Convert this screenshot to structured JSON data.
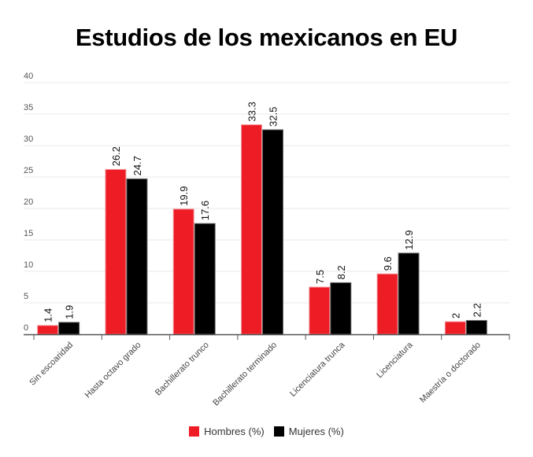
{
  "chart_data": {
    "type": "bar",
    "title": "Estudios de los mexicanos en EU",
    "xlabel": "",
    "ylabel": "",
    "ylim": [
      0,
      40
    ],
    "yticks": [
      0,
      5,
      10,
      15,
      20,
      25,
      30,
      35,
      40
    ],
    "grid": true,
    "legend_position": "bottom-center",
    "categories": [
      "Sin escoaridad",
      "Hasta octavo grado",
      "Bachillerato trunco",
      "Bachillerato terminado",
      "Licenciatura trunca",
      "Licenciatura",
      "Maestría o doctorado"
    ],
    "series": [
      {
        "name": "Hombres (%)",
        "color": "#ee1c25",
        "values": [
          1.4,
          26.2,
          19.9,
          33.3,
          7.5,
          9.6,
          2
        ]
      },
      {
        "name": "Mujeres (%)",
        "color": "#000000",
        "values": [
          1.9,
          24.7,
          17.6,
          32.5,
          8.2,
          12.9,
          2.2
        ]
      }
    ]
  }
}
